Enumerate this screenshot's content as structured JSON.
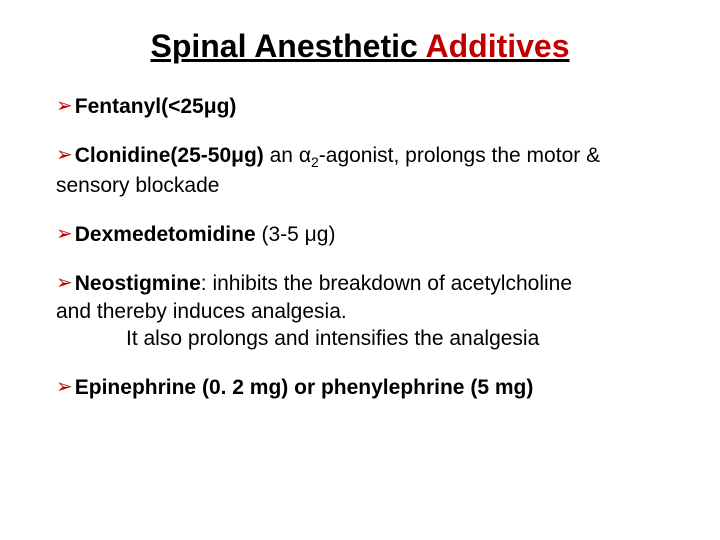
{
  "title": {
    "plain": "Spinal Anesthetic ",
    "highlight": "Additives"
  },
  "bullets": {
    "b1": {
      "bold": "Fentanyl(<25μg)"
    },
    "b2": {
      "bold": "Clonidine(25-50μg)",
      "tail1": "  an α",
      "sub": "2",
      "tail2": "-agonist, prolongs the motor &",
      "line2": "sensory blockade"
    },
    "b3": {
      "bold": "Dexmedetomidine",
      "tail": " (3-5 μg)"
    },
    "b4": {
      "bold": "Neostigmine",
      "tail": ":  inhibits the breakdown of acetylcholine",
      "line2": "and thereby induces analgesia.",
      "line3": "It also prolongs and intensifies the analgesia"
    },
    "b5": {
      "bold": "Epinephrine (0. 2 mg) or phenylephrine (5 mg)"
    }
  },
  "colors": {
    "arrow": "#c00000",
    "title_highlight": "#c00000",
    "text": "#000000",
    "background": "#ffffff"
  },
  "typography": {
    "title_fontsize": 32,
    "body_fontsize": 21,
    "sub_fontsize": 14,
    "font_family": "Arial"
  }
}
